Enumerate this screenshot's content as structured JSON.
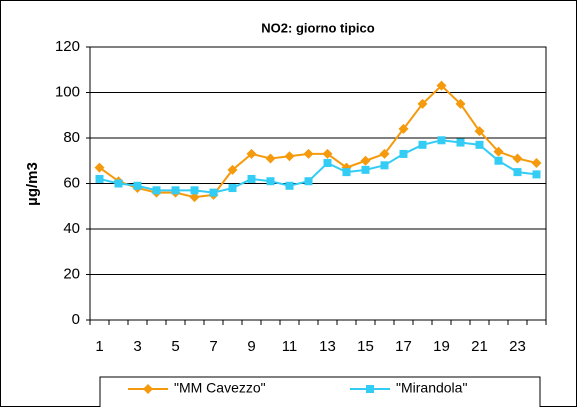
{
  "chart_data": {
    "type": "line",
    "title": "NO2: giorno tipico",
    "y_label": "µg/m3",
    "categories": [
      "1",
      null,
      "3",
      null,
      "5",
      null,
      "7",
      null,
      "9",
      null,
      "11",
      null,
      "13",
      null,
      "15",
      null,
      "17",
      null,
      "19",
      null,
      "21",
      null,
      "23",
      null
    ],
    "series": [
      {
        "name": "\"MM Cavezzo\"",
        "color": "#f59a0c",
        "marker": "diamond",
        "values": [
          67,
          61,
          58,
          56,
          56,
          54,
          55,
          66,
          73,
          71,
          72,
          73,
          73,
          67,
          70,
          73,
          84,
          95,
          103,
          95,
          83,
          74,
          71,
          69
        ]
      },
      {
        "name": "\"Mirandola\"",
        "color": "#33ccf5",
        "marker": "square",
        "values": [
          62,
          60,
          59,
          57,
          57,
          57,
          56,
          58,
          62,
          61,
          59,
          61,
          69,
          65,
          66,
          68,
          73,
          77,
          79,
          78,
          77,
          70,
          65,
          64
        ]
      }
    ],
    "ylim": [
      0,
      120
    ],
    "yticks": [
      0,
      20,
      40,
      60,
      80,
      100,
      120
    ],
    "grid": true,
    "legend": "bottom"
  }
}
